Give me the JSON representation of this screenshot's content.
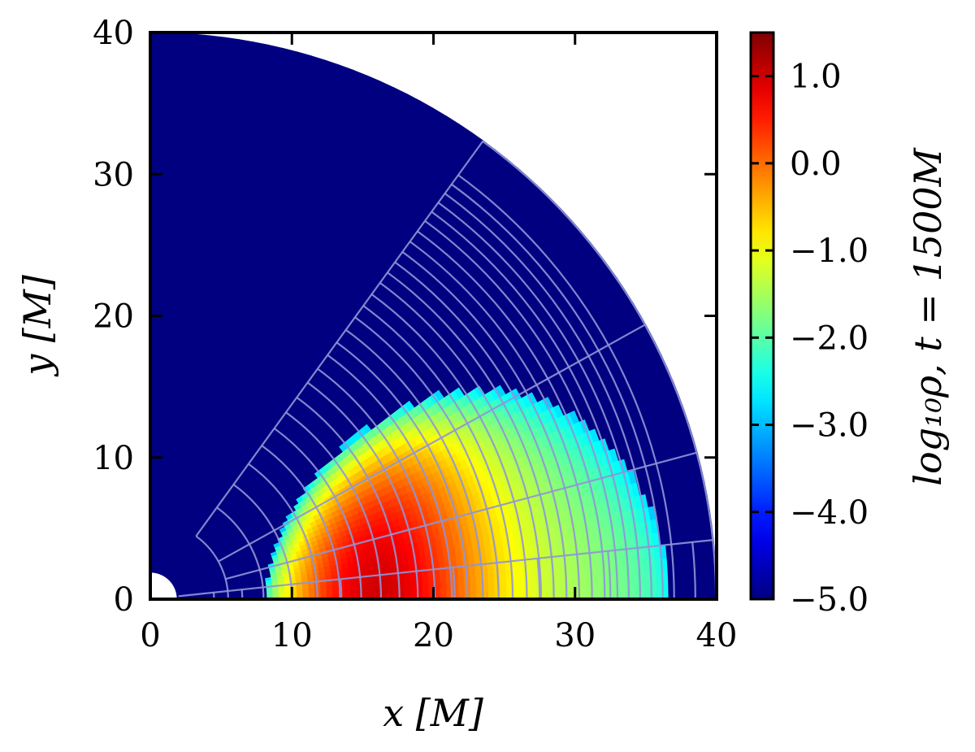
{
  "chart_data": {
    "type": "heatmap",
    "title": "",
    "xlabel": "x  [M]",
    "ylabel": "y  [M]",
    "xlim": [
      0,
      40
    ],
    "ylim": [
      0,
      40
    ],
    "x_ticks": [
      "0",
      "10",
      "20",
      "30",
      "40"
    ],
    "y_ticks": [
      "0",
      "10",
      "20",
      "30",
      "40"
    ],
    "colorbar": {
      "label": "log₁₀ρ,  t = 1500M",
      "range": [
        -5.0,
        1.5
      ],
      "ticks": [
        -5.0,
        -4.0,
        -3.0,
        -2.0,
        -1.0,
        0.0,
        1.0
      ],
      "tick_labels": [
        "−5.0",
        "−4.0",
        "−3.0",
        "−2.0",
        "−1.0",
        "0.0",
        "1.0"
      ],
      "colormap": "jet"
    },
    "domain": {
      "r_inner": 1.9,
      "r_outer": 40,
      "theta_range_deg": [
        0,
        90
      ]
    },
    "torus": {
      "description": "dense torus in meridional plane",
      "inner_edge_r": 8.2,
      "outer_edge_r": 36.8,
      "max_height_y": 14.8,
      "peak_log_rho": 1.4,
      "peak_x": 14.5,
      "edge_log_rho": -3.0
    },
    "background_log_rho": -5.0,
    "grid_overlay": {
      "color": "#8f95d8",
      "radial_lines_deg": [
        0,
        6,
        15,
        29,
        54
      ],
      "arc_radii_inner_block": [
        5.5,
        8,
        10,
        11.8,
        13.4,
        14.9,
        16.3,
        17.6,
        18.9,
        20.1,
        21.3,
        22.4,
        23.5,
        24.6,
        25.6,
        26.6,
        27.6,
        28.5,
        29.4,
        30.3,
        31.2,
        32.1,
        33.0,
        33.8,
        34.6,
        35.4,
        36.2,
        37.0
      ],
      "arc_radii_outer_block": [
        4.5,
        6.5,
        13.5,
        21.5,
        27.5,
        32.5,
        38.5
      ]
    }
  }
}
